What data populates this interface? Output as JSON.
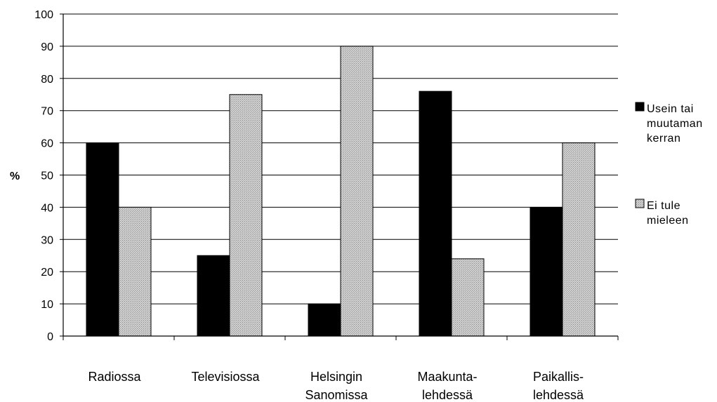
{
  "chart_data": {
    "type": "bar",
    "ylabel": "%",
    "xlabel": "",
    "title": "",
    "ylim": [
      0,
      100
    ],
    "yticks": [
      0,
      10,
      20,
      30,
      40,
      50,
      60,
      70,
      80,
      90,
      100
    ],
    "grid": "horizontal",
    "legend_position": "right",
    "categories": [
      [
        "Radiossa"
      ],
      [
        "Televisiossa"
      ],
      [
        "Helsingin",
        "Sanomissa"
      ],
      [
        "Maakunta-",
        "lehdessä"
      ],
      [
        "Paikallis-",
        "lehdessä"
      ]
    ],
    "series": [
      {
        "name": [
          "Usein tai",
          "muutaman",
          "kerran"
        ],
        "color": "#000000",
        "pattern": "solid",
        "values": [
          60,
          25,
          10,
          76,
          40
        ]
      },
      {
        "name": [
          "Ei tule",
          "mieleen"
        ],
        "color": "#c8c8c8",
        "pattern": "stipple",
        "values": [
          40,
          75,
          90,
          24,
          60
        ]
      }
    ]
  }
}
